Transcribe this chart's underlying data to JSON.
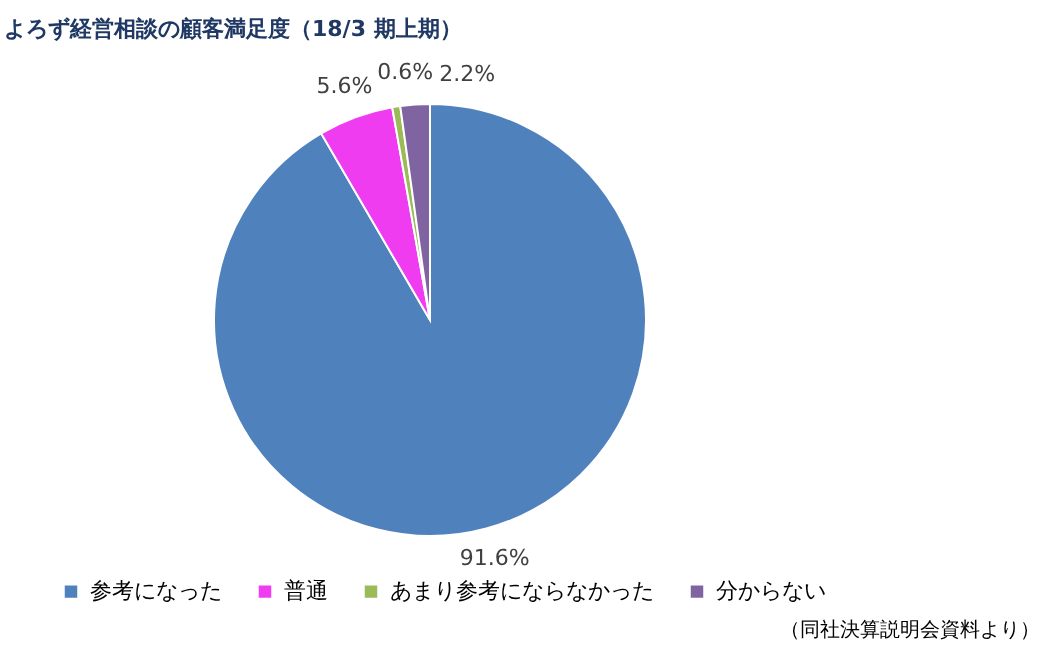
{
  "chart_data": {
    "type": "pie",
    "title": "よろず経営相談の顧客満足度（18/3 期上期）",
    "categories": [
      "参考になった",
      "普通",
      "あまり参考にならなかった",
      "分からない"
    ],
    "values": [
      91.6,
      5.6,
      0.6,
      2.2
    ],
    "colors": [
      "#4f81bd",
      "#f03cf0",
      "#9bbb59",
      "#8064a2"
    ],
    "value_labels": [
      "91.6%",
      "5.6%",
      "0.6%",
      "2.2%"
    ],
    "legend": "bottom",
    "annotations": [
      "（同社決算説明会資料より）"
    ]
  }
}
